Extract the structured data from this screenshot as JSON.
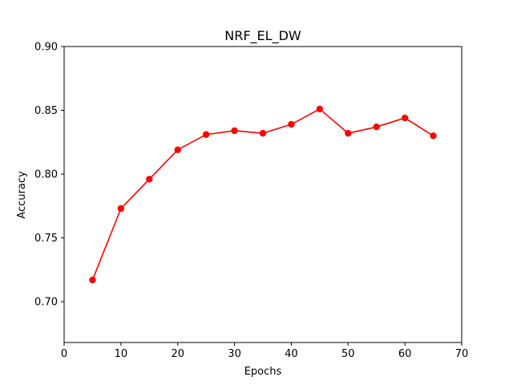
{
  "chart_data": {
    "type": "line",
    "title": "NRF_EL_DW",
    "xlabel": "Epochs",
    "ylabel": "Accuracy",
    "xlim": [
      0,
      70
    ],
    "ylim": [
      0.668,
      0.9
    ],
    "xticks": [
      0,
      10,
      20,
      30,
      40,
      50,
      60,
      70
    ],
    "xtick_labels": [
      "0",
      "10",
      "20",
      "30",
      "40",
      "50",
      "60",
      "70"
    ],
    "yticks": [
      0.7,
      0.75,
      0.8,
      0.85,
      0.9
    ],
    "ytick_labels": [
      "0.70",
      "0.75",
      "0.80",
      "0.85",
      "0.90"
    ],
    "grid": false,
    "series": [
      {
        "color": "#ff0000",
        "marker": "circle",
        "x": [
          5,
          10,
          15,
          20,
          25,
          30,
          35,
          40,
          45,
          50,
          55,
          60,
          65
        ],
        "y": [
          0.717,
          0.773,
          0.796,
          0.819,
          0.831,
          0.834,
          0.832,
          0.839,
          0.851,
          0.832,
          0.837,
          0.844,
          0.83
        ]
      }
    ]
  }
}
